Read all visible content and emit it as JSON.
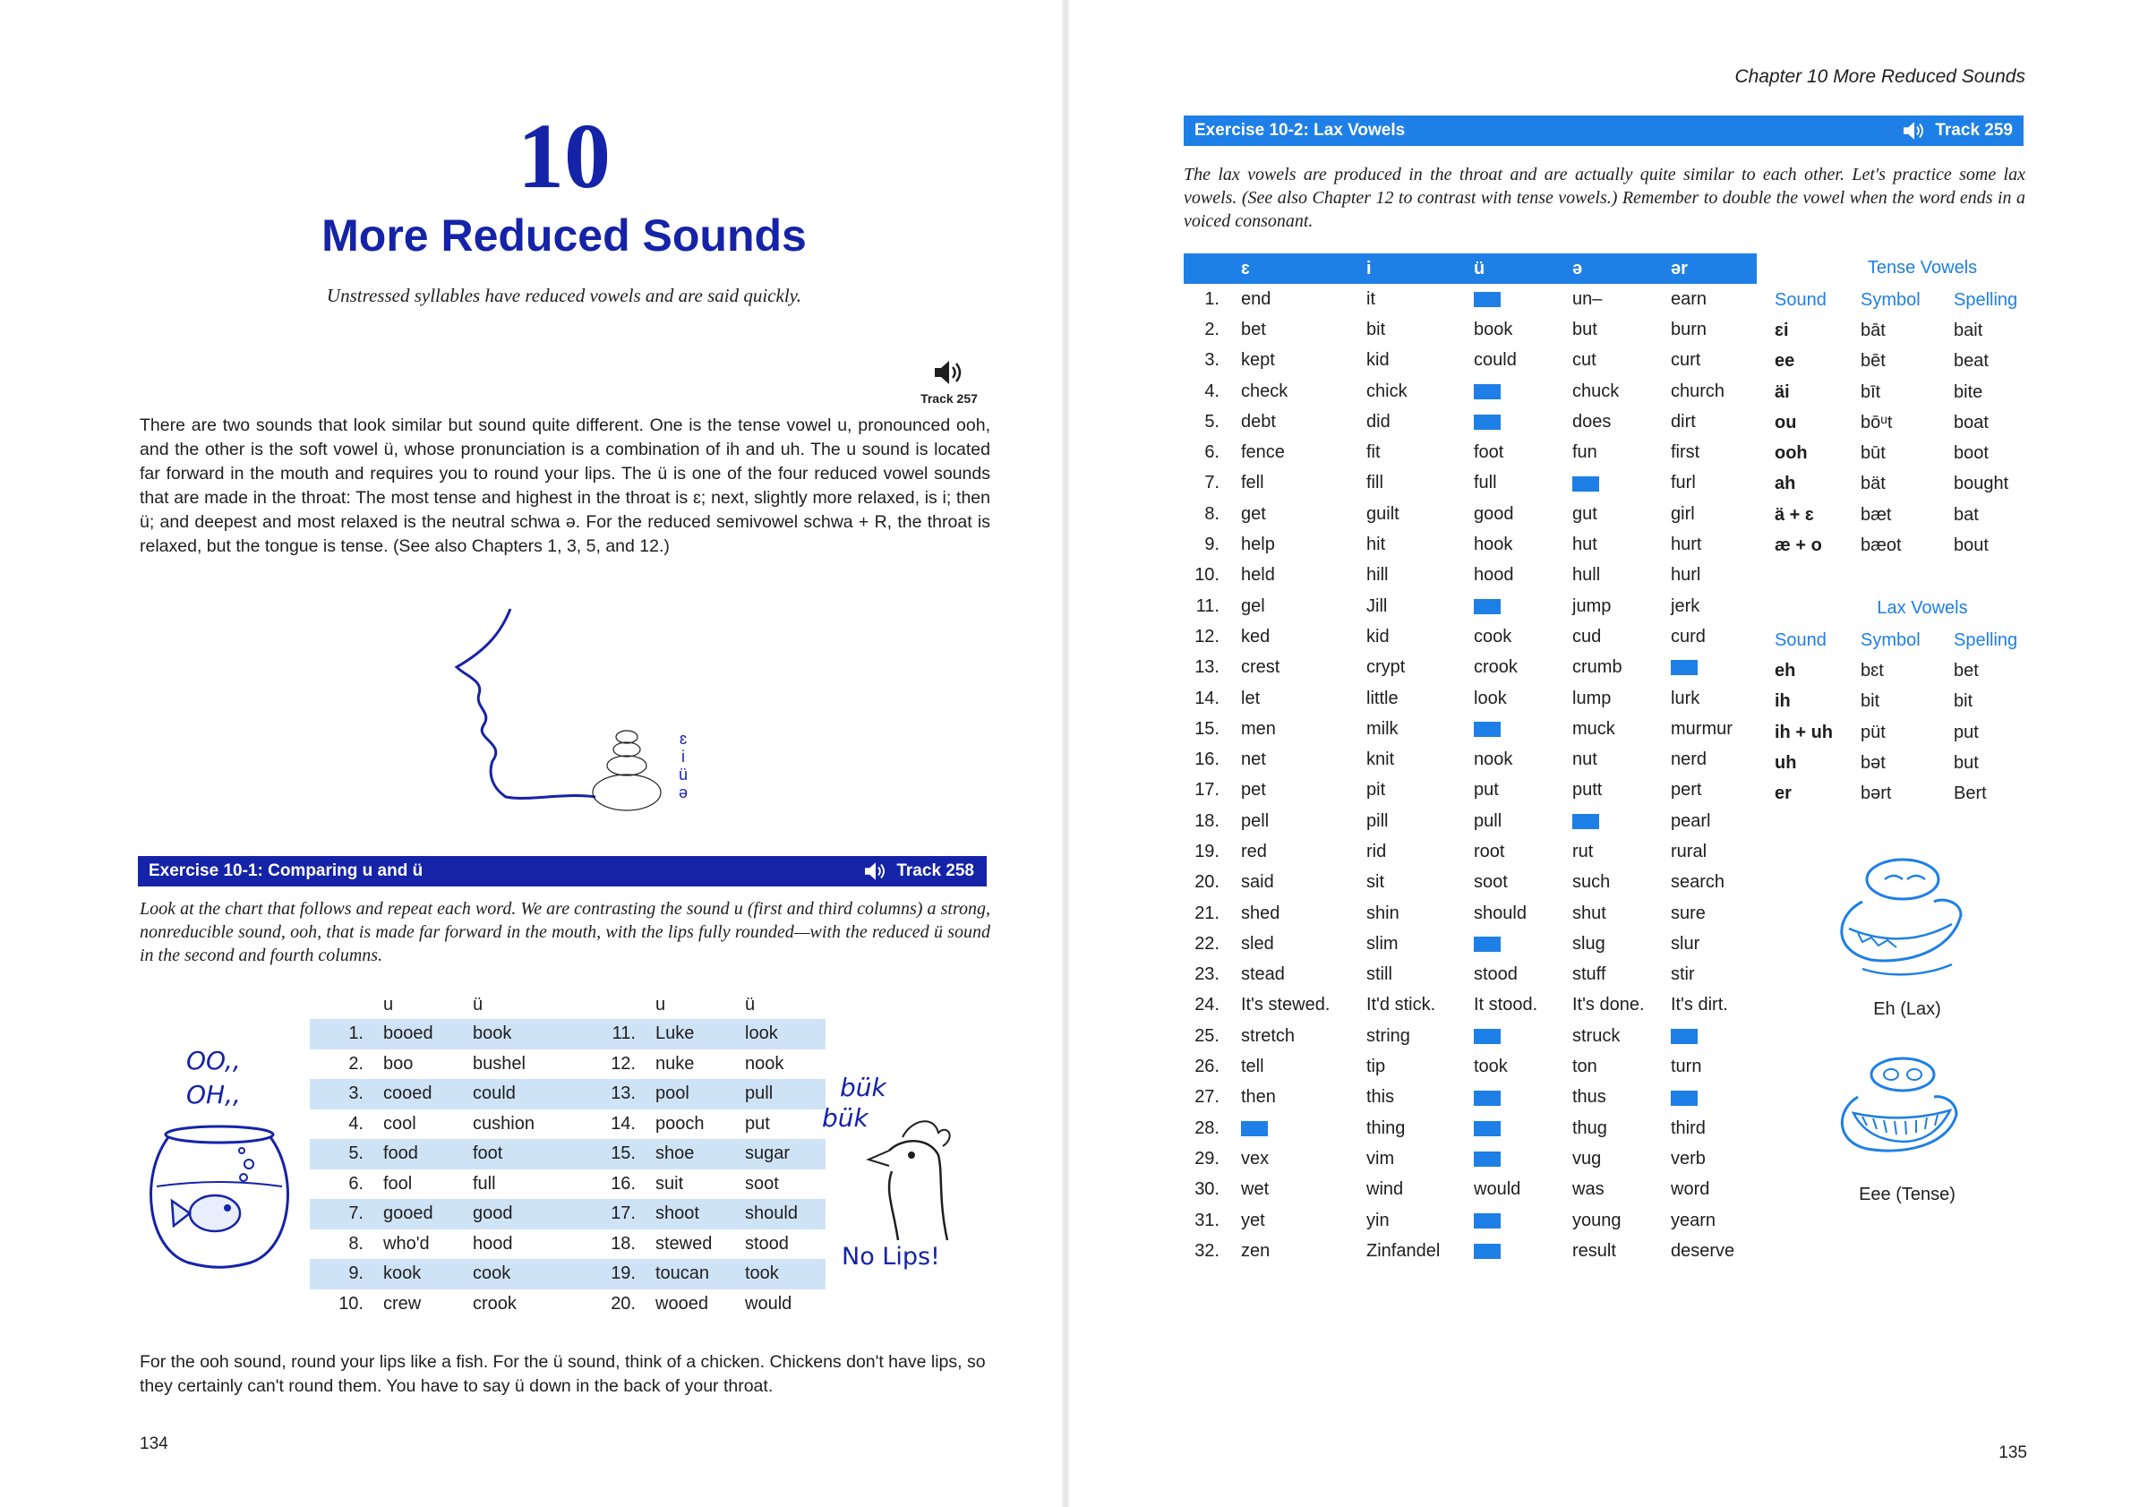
{
  "left_page": {
    "chapter_number": "10",
    "chapter_title": "More Reduced Sounds",
    "chapter_subtitle": "Unstressed syllables have reduced vowels and are said quickly.",
    "track_intro": "Track 257",
    "intro_paragraph": "There are two sounds that look similar but sound quite different. One is the tense vowel u, pronounced ooh, and the other is the soft vowel ü, whose pronunciation is a combination of ih and uh. The u sound is located far forward in the mouth and requires you to round your lips. The ü is one of the four reduced vowel sounds that are made in the throat: The most tense and highest in the throat is ɛ; next, slightly more relaxed, is i; then ü; and deepest and most relaxed is the neutral schwa ə. For the reduced semivowel schwa + R, the throat is relaxed, but the tongue is tense. (See also Chapters 1, 3, 5, and 12.)",
    "diagram_labels": [
      "ɛ",
      "i",
      "ü",
      "ə"
    ],
    "exercise": {
      "title": "Exercise 10-1: Comparing u and ü",
      "track": "Track 258",
      "instructions": "Look at the chart that follows and repeat each word. We are contrasting the sound u (first and third columns) a strong, nonreducible sound, ooh, that is made far forward in the mouth, with the lips fully rounded—with the reduced ü sound in the second and fourth columns.",
      "headers": [
        "u",
        "ü",
        "u",
        "ü"
      ],
      "rows": [
        {
          "n1": "1.",
          "u1": "booed",
          "v1": "book",
          "n2": "11.",
          "u2": "Luke",
          "v2": "look"
        },
        {
          "n1": "2.",
          "u1": "boo",
          "v1": "bushel",
          "n2": "12.",
          "u2": "nuke",
          "v2": "nook"
        },
        {
          "n1": "3.",
          "u1": "cooed",
          "v1": "could",
          "n2": "13.",
          "u2": "pool",
          "v2": "pull"
        },
        {
          "n1": "4.",
          "u1": "cool",
          "v1": "cushion",
          "n2": "14.",
          "u2": "pooch",
          "v2": "put"
        },
        {
          "n1": "5.",
          "u1": "food",
          "v1": "foot",
          "n2": "15.",
          "u2": "shoe",
          "v2": "sugar"
        },
        {
          "n1": "6.",
          "u1": "fool",
          "v1": "full",
          "n2": "16.",
          "u2": "suit",
          "v2": "soot"
        },
        {
          "n1": "7.",
          "u1": "gooed",
          "v1": "good",
          "n2": "17.",
          "u2": "shoot",
          "v2": "should"
        },
        {
          "n1": "8.",
          "u1": "who'd",
          "v1": "hood",
          "n2": "18.",
          "u2": "stewed",
          "v2": "stood"
        },
        {
          "n1": "9.",
          "u1": "kook",
          "v1": "cook",
          "n2": "19.",
          "u2": "toucan",
          "v2": "took"
        },
        {
          "n1": "10.",
          "u1": "crew",
          "v1": "crook",
          "n2": "20.",
          "u2": "wooed",
          "v2": "would"
        }
      ],
      "fish_text_1": "OO,,",
      "fish_text_2": "OH,,",
      "chicken_text_1": "bük",
      "chicken_text_2": "bük",
      "chicken_caption": "No Lips!"
    },
    "footer_paragraph": "For the ooh sound, round your lips like a fish. For the ü sound, think of a chicken. Chickens don't have lips, so they certainly can't round them. You have to say ü down in the back of your throat.",
    "page_number": "134"
  },
  "right_page": {
    "running_head": "Chapter 10 More Reduced Sounds",
    "exercise": {
      "title": "Exercise 10-2: Lax Vowels",
      "track": "Track 259",
      "instructions": "The lax vowels are produced in the throat and are actually quite similar to each other. Let's practice some lax vowels. (See also Chapter 12 to contrast with tense vowels.) Remember to double the vowel when the word ends in a voiced consonant.",
      "headers": [
        "ɛ",
        "i",
        "ü",
        "ə",
        "ər"
      ],
      "rows": [
        [
          "1.",
          "end",
          "it",
          "",
          "un–",
          "earn"
        ],
        [
          "2.",
          "bet",
          "bit",
          "book",
          "but",
          "burn"
        ],
        [
          "3.",
          "kept",
          "kid",
          "could",
          "cut",
          "curt"
        ],
        [
          "4.",
          "check",
          "chick",
          "",
          "chuck",
          "church"
        ],
        [
          "5.",
          "debt",
          "did",
          "",
          "does",
          "dirt"
        ],
        [
          "6.",
          "fence",
          "fit",
          "foot",
          "fun",
          "first"
        ],
        [
          "7.",
          "fell",
          "fill",
          "full",
          "",
          "furl"
        ],
        [
          "8.",
          "get",
          "guilt",
          "good",
          "gut",
          "girl"
        ],
        [
          "9.",
          "help",
          "hit",
          "hook",
          "hut",
          "hurt"
        ],
        [
          "10.",
          "held",
          "hill",
          "hood",
          "hull",
          "hurl"
        ],
        [
          "11.",
          "gel",
          "Jill",
          "",
          "jump",
          "jerk"
        ],
        [
          "12.",
          "ked",
          "kid",
          "cook",
          "cud",
          "curd"
        ],
        [
          "13.",
          "crest",
          "crypt",
          "crook",
          "crumb",
          ""
        ],
        [
          "14.",
          "let",
          "little",
          "look",
          "lump",
          "lurk"
        ],
        [
          "15.",
          "men",
          "milk",
          "",
          "muck",
          "murmur"
        ],
        [
          "16.",
          "net",
          "knit",
          "nook",
          "nut",
          "nerd"
        ],
        [
          "17.",
          "pet",
          "pit",
          "put",
          "putt",
          "pert"
        ],
        [
          "18.",
          "pell",
          "pill",
          "pull",
          "",
          "pearl"
        ],
        [
          "19.",
          "red",
          "rid",
          "root",
          "rut",
          "rural"
        ],
        [
          "20.",
          "said",
          "sit",
          "soot",
          "such",
          "search"
        ],
        [
          "21.",
          "shed",
          "shin",
          "should",
          "shut",
          "sure"
        ],
        [
          "22.",
          "sled",
          "slim",
          "",
          "slug",
          "slur"
        ],
        [
          "23.",
          "stead",
          "still",
          "stood",
          "stuff",
          "stir"
        ],
        [
          "24.",
          "It's stewed.",
          "It'd stick.",
          "It stood.",
          "It's done.",
          "It's dirt."
        ],
        [
          "25.",
          "stretch",
          "string",
          "",
          "struck",
          ""
        ],
        [
          "26.",
          "tell",
          "tip",
          "took",
          "ton",
          "turn"
        ],
        [
          "27.",
          "then",
          "this",
          "",
          "thus",
          ""
        ],
        [
          "28.",
          "",
          "thing",
          "",
          "thug",
          "third"
        ],
        [
          "29.",
          "vex",
          "vim",
          "",
          "vug",
          "verb"
        ],
        [
          "30.",
          "wet",
          "wind",
          "would",
          "was",
          "word"
        ],
        [
          "31.",
          "yet",
          "yin",
          "",
          "young",
          "yearn"
        ],
        [
          "32.",
          "zen",
          "Zinfandel",
          "",
          "result",
          "deserve"
        ]
      ],
      "blank_cells": [
        [
          0,
          3
        ],
        [
          3,
          3
        ],
        [
          4,
          3
        ],
        [
          6,
          4
        ],
        [
          10,
          3
        ],
        [
          12,
          5
        ],
        [
          14,
          3
        ],
        [
          17,
          4
        ],
        [
          21,
          3
        ],
        [
          24,
          3
        ],
        [
          24,
          5
        ],
        [
          26,
          3
        ],
        [
          26,
          5
        ],
        [
          27,
          1
        ],
        [
          27,
          3
        ],
        [
          28,
          3
        ],
        [
          30,
          3
        ],
        [
          31,
          3
        ]
      ]
    },
    "tense_vowels": {
      "title": "Tense Vowels",
      "headers": [
        "Sound",
        "Symbol",
        "Spelling"
      ],
      "rows": [
        [
          "ɛi",
          "bāt",
          "bait"
        ],
        [
          "ee",
          "bēt",
          "beat"
        ],
        [
          "äi",
          "bīt",
          "bite"
        ],
        [
          "ou",
          "bōᵘt",
          "boat"
        ],
        [
          "ooh",
          "būt",
          "boot"
        ],
        [
          "ah",
          "bät",
          "bought"
        ],
        [
          "ä + ɛ",
          "bæt",
          "bat"
        ],
        [
          "æ + o",
          "bæot",
          "bout"
        ]
      ]
    },
    "lax_vowels": {
      "title": "Lax Vowels",
      "headers": [
        "Sound",
        "Symbol",
        "Spelling"
      ],
      "rows": [
        [
          "eh",
          "bɛt",
          "bet"
        ],
        [
          "ih",
          "bit",
          "bit"
        ],
        [
          "ih + uh",
          "püt",
          "put"
        ],
        [
          "uh",
          "bət",
          "but"
        ],
        [
          "er",
          "bərt",
          "Bert"
        ]
      ]
    },
    "caption_lax": "Eh (Lax)",
    "caption_tense": "Eee (Tense)",
    "page_number": "135"
  },
  "colors": {
    "dark_blue": "#1523a8",
    "accent_blue": "#1e7fe6",
    "shade_blue": "#cfe3f6"
  }
}
